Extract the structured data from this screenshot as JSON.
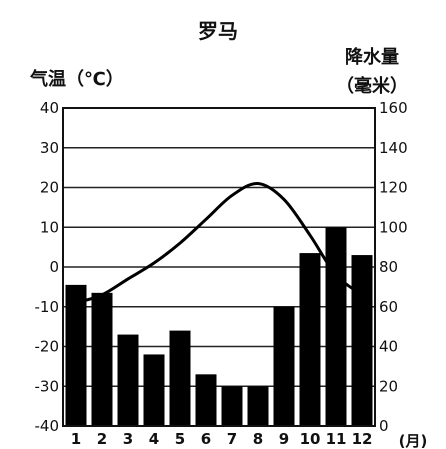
{
  "chart_data": {
    "type": "bar+line",
    "title": "罗马",
    "left_axis_label": "气温（℃）",
    "right_axis_label_line1": "降水量",
    "right_axis_label_line2": "（毫米）",
    "x_unit": "(月)",
    "categories": [
      "1",
      "2",
      "3",
      "4",
      "5",
      "6",
      "7",
      "8",
      "9",
      "10",
      "11",
      "12"
    ],
    "temperature_c": [
      -9,
      -7,
      -3,
      1,
      6,
      12,
      18,
      21,
      17,
      8,
      -2,
      -7
    ],
    "precipitation_mm": [
      71,
      67,
      46,
      36,
      48,
      26,
      20,
      20,
      60,
      87,
      100,
      86
    ],
    "left_ylim": [
      -40,
      40
    ],
    "left_ticks": [
      "40",
      "30",
      "20",
      "10",
      "0",
      "-10",
      "-20",
      "-30",
      "-40"
    ],
    "right_ylim": [
      0,
      160
    ],
    "right_ticks": [
      "160",
      "140",
      "120",
      "100",
      "80",
      "60",
      "40",
      "20",
      "0"
    ],
    "grid": "horizontal",
    "bar_color": "#000000",
    "line_color": "#000000"
  }
}
